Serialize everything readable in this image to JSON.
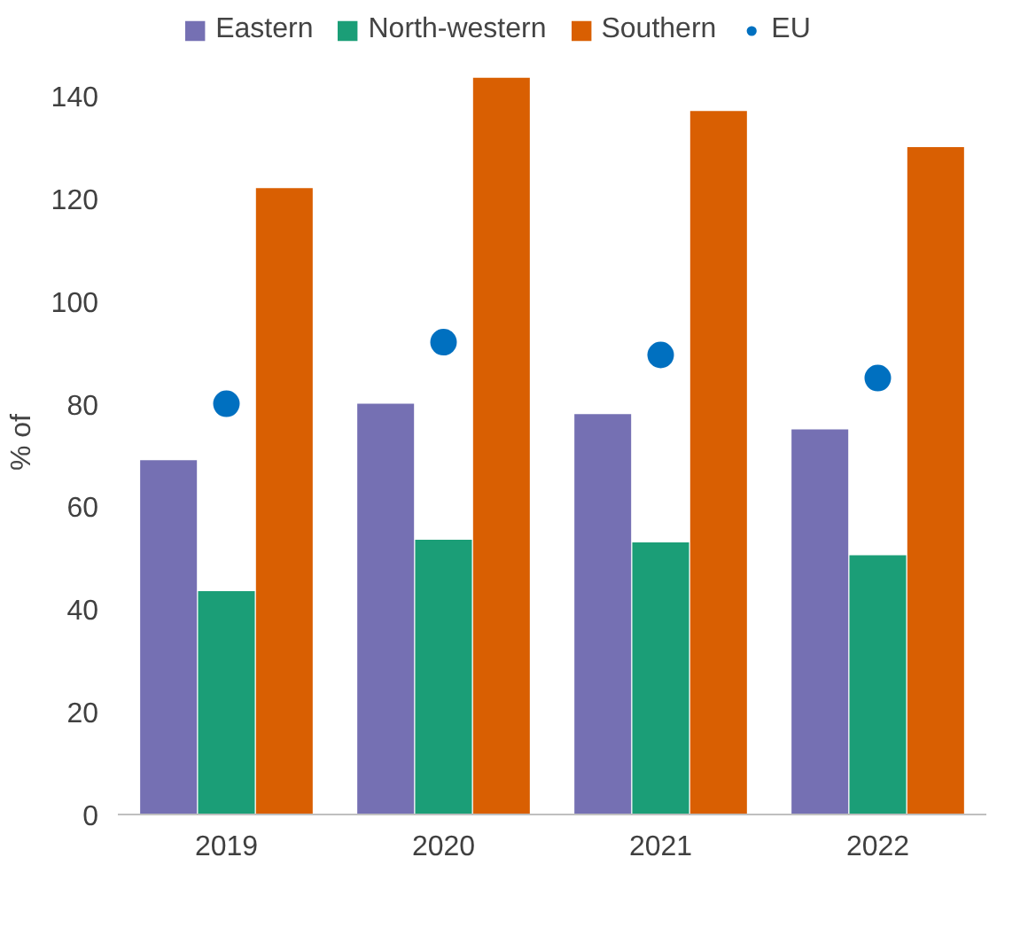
{
  "chart_data": {
    "type": "bar",
    "ylabel": "% of",
    "categories": [
      "2019",
      "2020",
      "2021",
      "2022"
    ],
    "series": [
      {
        "name": "Eastern",
        "color": "#7570b3",
        "values": [
          69,
          80,
          78,
          75
        ]
      },
      {
        "name": "North-western",
        "color": "#1b9e77",
        "values": [
          43.5,
          53.5,
          53,
          50.5
        ]
      },
      {
        "name": "Southern",
        "color": "#d95f02",
        "values": [
          122,
          143.5,
          137,
          130
        ]
      },
      {
        "name": "EU",
        "type": "scatter",
        "color": "#0070c0",
        "values": [
          80,
          92,
          89.5,
          85
        ]
      }
    ],
    "ylim": [
      0,
      145
    ],
    "yticks": [
      0,
      20,
      40,
      60,
      80,
      100,
      120,
      140
    ],
    "grid": false,
    "legend": "top",
    "marker": "circle"
  }
}
